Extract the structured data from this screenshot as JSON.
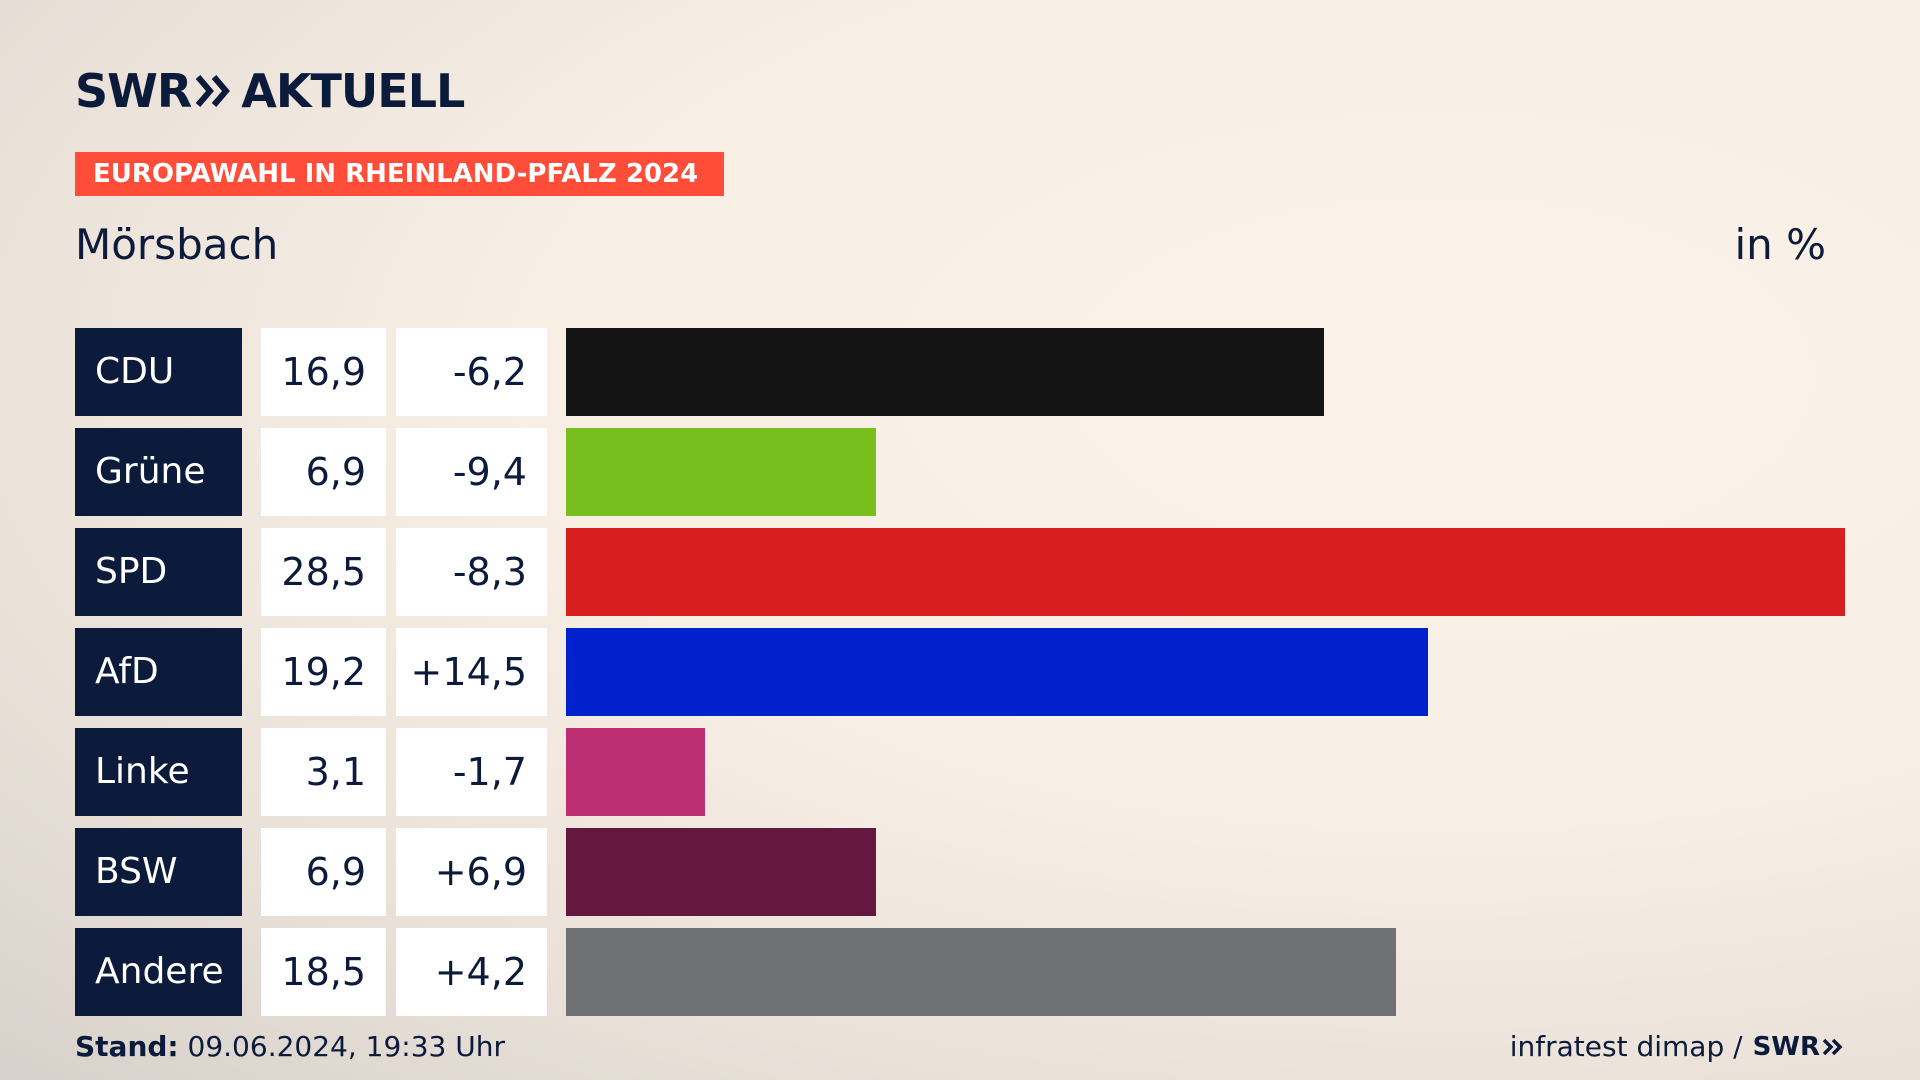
{
  "header": {
    "logo_brand": "SWR",
    "logo_product": "AKTUELL",
    "badge": "EUROPAWAHL IN RHEINLAND-PFALZ 2024",
    "subtitle": "Mörsbach",
    "unit": "in %"
  },
  "colors": {
    "navy": "#0c1b3b",
    "badge": "#ff4d3a"
  },
  "chart_data": {
    "type": "bar",
    "orientation": "horizontal",
    "categories": [
      "CDU",
      "Grüne",
      "SPD",
      "AfD",
      "Linke",
      "BSW",
      "Andere"
    ],
    "values": [
      16.9,
      6.9,
      28.5,
      19.2,
      3.1,
      6.9,
      18.5
    ],
    "value_labels": [
      "16,9",
      "6,9",
      "28,5",
      "19,2",
      "3,1",
      "6,9",
      "18,5"
    ],
    "change_labels": [
      "-6,2",
      "-9,4",
      "-8,3",
      "+14,5",
      "-1,7",
      "+6,9",
      "+4,2"
    ],
    "colors": [
      "#141414",
      "#78be1e",
      "#d71f1f",
      "#0021cc",
      "#bd2f73",
      "#64173f",
      "#707174"
    ],
    "xlim": [
      0,
      28.5
    ]
  },
  "footer": {
    "stand_label": "Stand:",
    "stand_value": "09.06.2024, 19:33 Uhr",
    "source": "infratest dimap /",
    "source_logo": "SWR"
  }
}
